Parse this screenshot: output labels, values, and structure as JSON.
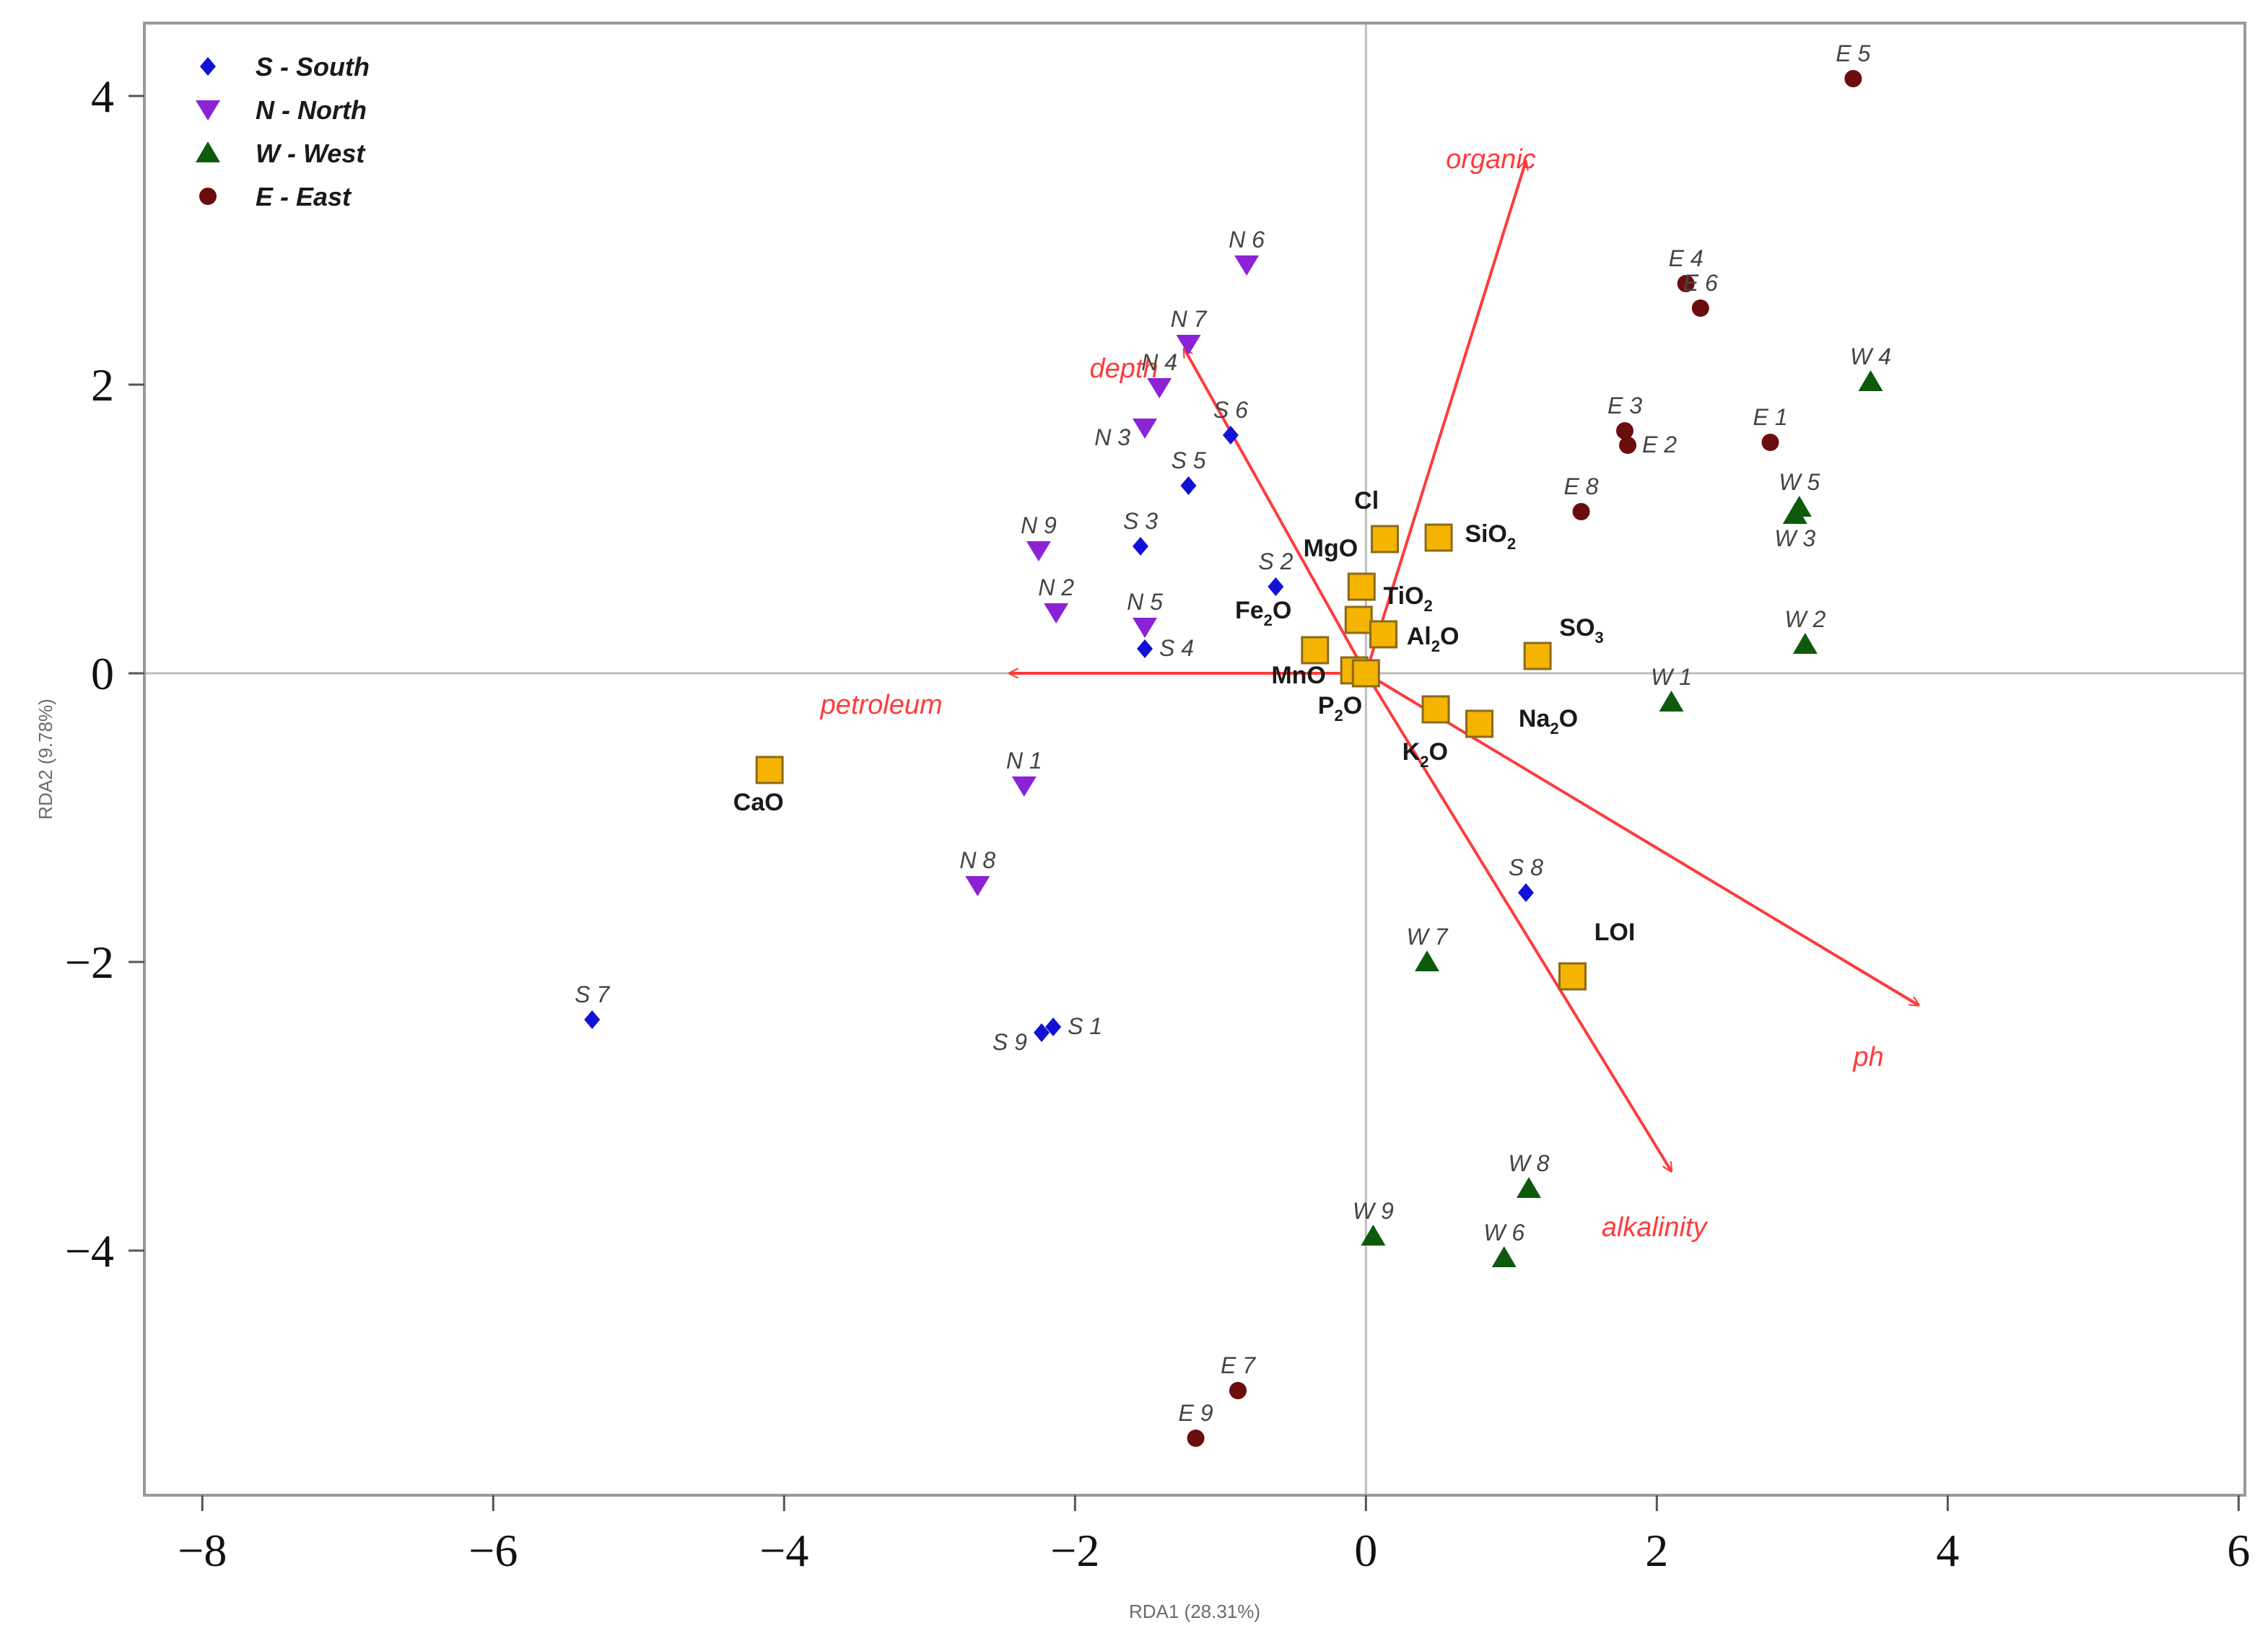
{
  "chart_data": {
    "type": "scatter",
    "title": "",
    "xlabel": "RDA1 (28.31%)",
    "ylabel": "RDA2 (9.78%)",
    "xlim": [
      -8.2,
      6.3
    ],
    "ylim": [
      -5.66,
      4.52
    ],
    "xticks": [
      -8,
      -6,
      -4,
      -2,
      0,
      2,
      4,
      6
    ],
    "yticks": [
      -4,
      -2,
      0,
      2,
      4
    ],
    "x_tick_labels": [
      "−8",
      "−6",
      "−4",
      "−2",
      "0",
      "2",
      "4",
      "6"
    ],
    "y_tick_labels": [
      "−4",
      "−2",
      "0",
      "2",
      "4"
    ],
    "grid": false,
    "zero_lines": true,
    "legend_position": "top-left",
    "colors": {
      "south": "#1212d6",
      "north": "#8b22d6",
      "west": "#0d5a0d",
      "east": "#6b0d0d",
      "arrow": "#ff3b3b",
      "oxide_fill": "#f5b400",
      "oxide_stroke": "#8a6a1c"
    },
    "legend": [
      {
        "key": "south",
        "label": "S - South",
        "marker": "diamond"
      },
      {
        "key": "north",
        "label": "N - North",
        "marker": "triangle-down"
      },
      {
        "key": "west",
        "label": "W - West",
        "marker": "triangle-up"
      },
      {
        "key": "east",
        "label": "E - East",
        "marker": "circle"
      }
    ],
    "series": [
      {
        "name": "S - South",
        "key": "south",
        "marker": "diamond",
        "points": [
          {
            "label": "S 1",
            "x": -2.15,
            "y": -2.45,
            "label_pos": "right"
          },
          {
            "label": "S 2",
            "x": -0.62,
            "y": 0.6,
            "label_pos": "above"
          },
          {
            "label": "S 3",
            "x": -1.55,
            "y": 0.88,
            "label_pos": "above"
          },
          {
            "label": "S 4",
            "x": -1.52,
            "y": 0.17,
            "label_pos": "right"
          },
          {
            "label": "S 5",
            "x": -1.22,
            "y": 1.3,
            "label_pos": "above"
          },
          {
            "label": "S 6",
            "x": -0.93,
            "y": 1.65,
            "label_pos": "above"
          },
          {
            "label": "S 7",
            "x": -5.32,
            "y": -2.4,
            "label_pos": "above"
          },
          {
            "label": "S 8",
            "x": 1.1,
            "y": -1.52,
            "label_pos": "above"
          },
          {
            "label": "S 9",
            "x": -2.23,
            "y": -2.49,
            "label_pos": "left"
          }
        ]
      },
      {
        "name": "N - North",
        "key": "north",
        "marker": "triangle-down",
        "points": [
          {
            "label": "N 1",
            "x": -2.35,
            "y": -0.78,
            "label_pos": "above"
          },
          {
            "label": "N 2",
            "x": -2.13,
            "y": 0.42,
            "label_pos": "above"
          },
          {
            "label": "N 3",
            "x": -1.52,
            "y": 1.7,
            "label_pos": "left"
          },
          {
            "label": "N 4",
            "x": -1.42,
            "y": 1.98,
            "label_pos": "above"
          },
          {
            "label": "N 5",
            "x": -1.52,
            "y": 0.32,
            "label_pos": "above"
          },
          {
            "label": "N 6",
            "x": -0.82,
            "y": 2.83,
            "label_pos": "above"
          },
          {
            "label": "N 7",
            "x": -1.22,
            "y": 2.28,
            "label_pos": "above"
          },
          {
            "label": "N 8",
            "x": -2.67,
            "y": -1.47,
            "label_pos": "above"
          },
          {
            "label": "N 9",
            "x": -2.25,
            "y": 0.85,
            "label_pos": "above"
          }
        ]
      },
      {
        "name": "W - West",
        "key": "west",
        "marker": "triangle-up",
        "points": [
          {
            "label": "W 1",
            "x": 2.1,
            "y": -0.2,
            "label_pos": "above"
          },
          {
            "label": "W 2",
            "x": 3.02,
            "y": 0.2,
            "label_pos": "above"
          },
          {
            "label": "W 3",
            "x": 2.95,
            "y": 1.1,
            "label_pos": "below"
          },
          {
            "label": "W 4",
            "x": 3.47,
            "y": 2.02,
            "label_pos": "above"
          },
          {
            "label": "W 5",
            "x": 2.98,
            "y": 1.15,
            "label_pos": "above"
          },
          {
            "label": "W 6",
            "x": 0.95,
            "y": -4.05,
            "label_pos": "above"
          },
          {
            "label": "W 7",
            "x": 0.42,
            "y": -2.0,
            "label_pos": "above"
          },
          {
            "label": "W 8",
            "x": 1.12,
            "y": -3.57,
            "label_pos": "above"
          },
          {
            "label": "W 9",
            "x": 0.05,
            "y": -3.9,
            "label_pos": "above"
          }
        ]
      },
      {
        "name": "E - East",
        "key": "east",
        "marker": "circle",
        "points": [
          {
            "label": "E 1",
            "x": 2.78,
            "y": 1.6,
            "label_pos": "above"
          },
          {
            "label": "E 2",
            "x": 1.8,
            "y": 1.58,
            "label_pos": "right"
          },
          {
            "label": "E 3",
            "x": 1.78,
            "y": 1.68,
            "label_pos": "above"
          },
          {
            "label": "E 4",
            "x": 2.2,
            "y": 2.7,
            "label_pos": "above"
          },
          {
            "label": "E 5",
            "x": 3.35,
            "y": 4.12,
            "label_pos": "above"
          },
          {
            "label": "E 6",
            "x": 2.3,
            "y": 2.53,
            "label_pos": "above"
          },
          {
            "label": "E 7",
            "x": -0.88,
            "y": -4.97,
            "label_pos": "above"
          },
          {
            "label": "E 8",
            "x": 1.48,
            "y": 1.12,
            "label_pos": "above"
          },
          {
            "label": "E 9",
            "x": -1.17,
            "y": -5.3,
            "label_pos": "above"
          }
        ]
      }
    ],
    "environmental_vectors": [
      {
        "label": "organic",
        "x": 1.1,
        "y": 3.55,
        "label_x": 0.55,
        "label_y": 3.5
      },
      {
        "label": "depth",
        "x": -1.25,
        "y": 2.25,
        "label_x": -1.9,
        "label_y": 2.05
      },
      {
        "label": "petroleum",
        "x": -2.45,
        "y": 0.0,
        "label_x": -3.75,
        "label_y": -0.28
      },
      {
        "label": "ph",
        "x": 3.8,
        "y": -2.3,
        "label_x": 3.35,
        "label_y": -2.72
      },
      {
        "label": "alkalinity",
        "x": 2.1,
        "y": -3.45,
        "label_x": 1.62,
        "label_y": -3.9
      }
    ],
    "oxides": [
      {
        "label": "Cl",
        "sub": "",
        "rest": "",
        "x": 0.13,
        "y": 0.93,
        "label_x": -0.08,
        "label_y": 1.14
      },
      {
        "label": "SiO",
        "sub": "2",
        "rest": "",
        "x": 0.5,
        "y": 0.94,
        "label_x": 0.68,
        "label_y": 0.91
      },
      {
        "label": "MgO",
        "sub": "",
        "rest": "",
        "x": -0.03,
        "y": 0.6,
        "label_x": -0.43,
        "label_y": 0.81
      },
      {
        "label": "TiO",
        "sub": "2",
        "rest": "",
        "x": -0.05,
        "y": 0.37,
        "label_x": 0.12,
        "label_y": 0.48
      },
      {
        "label": "Fe",
        "sub": "2",
        "rest": "O",
        "x": -0.35,
        "y": 0.16,
        "label_x": -0.9,
        "label_y": 0.38
      },
      {
        "label": "Al",
        "sub": "2",
        "rest": "O",
        "x": 0.12,
        "y": 0.27,
        "label_x": 0.28,
        "label_y": 0.2
      },
      {
        "label": "MnO",
        "sub": "",
        "rest": "",
        "x": -0.08,
        "y": 0.02,
        "label_x": -0.65,
        "label_y": -0.07
      },
      {
        "label": "SO",
        "sub": "3",
        "rest": "",
        "x": 1.18,
        "y": 0.12,
        "label_x": 1.33,
        "label_y": 0.26
      },
      {
        "label": "P",
        "sub": "2",
        "rest": "O",
        "x": 0.0,
        "y": 0.0,
        "label_x": -0.33,
        "label_y": -0.28
      },
      {
        "label": "Na",
        "sub": "2",
        "rest": "O",
        "x": 0.78,
        "y": -0.35,
        "label_x": 1.05,
        "label_y": -0.37
      },
      {
        "label": "K",
        "sub": "2",
        "rest": "O",
        "x": 0.48,
        "y": -0.25,
        "label_x": 0.25,
        "label_y": -0.6
      },
      {
        "label": "CaO",
        "sub": "",
        "rest": "",
        "x": -4.1,
        "y": -0.67,
        "label_x": -4.35,
        "label_y": -0.95
      },
      {
        "label": "LOI",
        "sub": "",
        "rest": "",
        "x": 1.42,
        "y": -2.1,
        "label_x": 1.57,
        "label_y": -1.85
      }
    ]
  }
}
